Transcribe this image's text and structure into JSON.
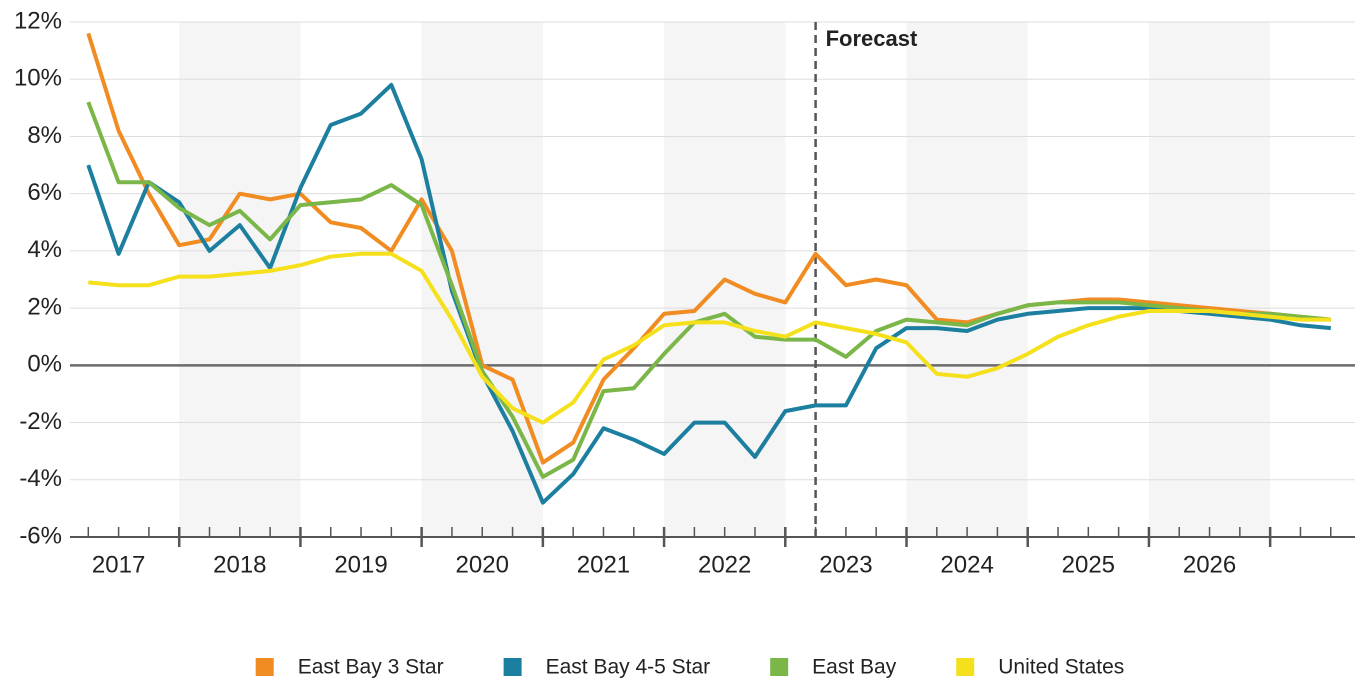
{
  "chart_data": {
    "type": "line",
    "x": [
      2017.25,
      2017.5,
      2017.75,
      2018,
      2018.25,
      2018.5,
      2018.75,
      2019,
      2019.25,
      2019.5,
      2019.75,
      2020,
      2020.25,
      2020.5,
      2020.75,
      2021,
      2021.25,
      2021.5,
      2021.75,
      2022,
      2022.25,
      2022.5,
      2022.75,
      2023,
      2023.25,
      2023.5,
      2023.75,
      2024,
      2024.25,
      2024.5,
      2024.75,
      2025,
      2025.25,
      2025.5,
      2025.75,
      2026,
      2026.25,
      2026.5,
      2026.75,
      2027,
      2027.25,
      2027.5
    ],
    "series": [
      {
        "name": "East Bay 3 Star",
        "color": "#f08c21",
        "values": [
          11.6,
          8.2,
          6.0,
          4.2,
          4.4,
          6.0,
          5.8,
          6.0,
          5.0,
          4.8,
          4.0,
          5.8,
          4.0,
          0.0,
          -0.5,
          -3.4,
          -2.7,
          -0.5,
          0.6,
          1.8,
          1.9,
          3.0,
          2.5,
          2.2,
          3.9,
          2.8,
          3.0,
          2.8,
          1.6,
          1.5,
          1.8,
          2.1,
          2.2,
          2.3,
          2.3,
          2.2,
          2.1,
          2.0,
          1.9,
          1.8,
          1.7,
          1.6
        ]
      },
      {
        "name": "East Bay 4-5 Star",
        "color": "#1c7fa0",
        "values": [
          7.0,
          3.9,
          6.4,
          5.7,
          4.0,
          4.9,
          3.4,
          6.2,
          8.4,
          8.8,
          9.8,
          7.2,
          2.6,
          -0.3,
          -2.3,
          -4.8,
          -3.8,
          -2.2,
          -2.6,
          -3.1,
          -2.0,
          -2.0,
          -3.2,
          -1.6,
          -1.4,
          -1.4,
          0.6,
          1.3,
          1.3,
          1.2,
          1.6,
          1.8,
          1.9,
          2.0,
          2.0,
          2.0,
          1.9,
          1.8,
          1.7,
          1.6,
          1.4,
          1.3
        ]
      },
      {
        "name": "East Bay",
        "color": "#7ab648",
        "values": [
          9.2,
          6.4,
          6.4,
          5.5,
          4.9,
          5.4,
          4.4,
          5.6,
          5.7,
          5.8,
          6.3,
          5.6,
          2.8,
          -0.2,
          -1.8,
          -3.9,
          -3.3,
          -0.9,
          -0.8,
          0.4,
          1.5,
          1.8,
          1.0,
          0.9,
          0.9,
          0.3,
          1.2,
          1.6,
          1.5,
          1.4,
          1.8,
          2.1,
          2.2,
          2.2,
          2.2,
          2.1,
          2.0,
          1.9,
          1.8,
          1.8,
          1.7,
          1.6
        ]
      },
      {
        "name": "United States",
        "color": "#f5e01c",
        "values": [
          2.9,
          2.8,
          2.8,
          3.1,
          3.1,
          3.2,
          3.3,
          3.5,
          3.8,
          3.9,
          3.9,
          3.3,
          1.6,
          -0.4,
          -1.5,
          -2.0,
          -1.3,
          0.2,
          0.7,
          1.4,
          1.5,
          1.5,
          1.2,
          1.0,
          1.5,
          1.3,
          1.1,
          0.8,
          -0.3,
          -0.4,
          -0.1,
          0.4,
          1.0,
          1.4,
          1.7,
          1.9,
          1.9,
          1.9,
          1.8,
          1.7,
          1.6,
          1.6
        ]
      }
    ],
    "xlim": [
      2017,
      2027.7
    ],
    "xticks": [
      {
        "value": 2017.5,
        "label": "2017"
      },
      {
        "value": 2018.5,
        "label": "2018"
      },
      {
        "value": 2019.5,
        "label": "2019"
      },
      {
        "value": 2020.5,
        "label": "2020"
      },
      {
        "value": 2021.5,
        "label": "2021"
      },
      {
        "value": 2022.5,
        "label": "2022"
      },
      {
        "value": 2023.5,
        "label": "2023"
      },
      {
        "value": 2024.5,
        "label": "2024"
      },
      {
        "value": 2025.5,
        "label": "2025"
      },
      {
        "value": 2026.5,
        "label": "2026"
      }
    ],
    "ylim": [
      -6,
      12
    ],
    "yticks": [
      {
        "value": -6,
        "label": "-6%"
      },
      {
        "value": -4,
        "label": "-4%"
      },
      {
        "value": -2,
        "label": "-2%"
      },
      {
        "value": 0,
        "label": "0%"
      },
      {
        "value": 2,
        "label": "2%"
      },
      {
        "value": 4,
        "label": "4%"
      },
      {
        "value": 6,
        "label": "6%"
      },
      {
        "value": 8,
        "label": "8%"
      },
      {
        "value": 10,
        "label": "10%"
      },
      {
        "value": 12,
        "label": "12%"
      }
    ],
    "grid": true,
    "annotation": {
      "text": "Forecast",
      "x": 2023.25
    },
    "legend": "bottom"
  }
}
